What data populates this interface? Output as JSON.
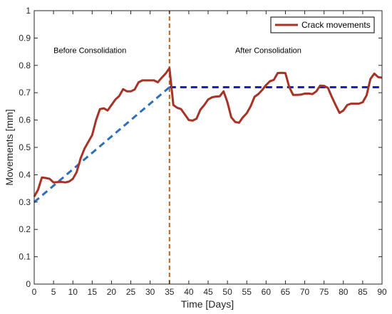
{
  "chart_data": {
    "type": "line",
    "title": "",
    "xlabel": "Time [Days]",
    "ylabel": "Movements [mm]",
    "xlim": [
      0,
      90
    ],
    "ylim": [
      0,
      1
    ],
    "xticks": [
      0,
      5,
      10,
      15,
      20,
      25,
      30,
      35,
      40,
      45,
      50,
      55,
      60,
      65,
      70,
      75,
      80,
      85,
      90
    ],
    "yticks": [
      0,
      0.1,
      0.2,
      0.3,
      0.4,
      0.5,
      0.6,
      0.7,
      0.8,
      0.9,
      1
    ],
    "ytick_labels": [
      "0",
      "0.1",
      "0.2",
      "0.3",
      "0.4",
      "0.5",
      "0.6",
      "0.7",
      "0.8",
      "0.9",
      "1"
    ],
    "grid": false,
    "legend_position": "top-right",
    "series": [
      {
        "name": "Crack movements",
        "color": "#a93226",
        "x": [
          0,
          1,
          2,
          3,
          4,
          5,
          6,
          7,
          8,
          9,
          10,
          11,
          12,
          13,
          14,
          15,
          16,
          17,
          18,
          19,
          20,
          21,
          22,
          23,
          24,
          25,
          26,
          27,
          28,
          29,
          30,
          31,
          32,
          33,
          34,
          35,
          36,
          37,
          38,
          39,
          40,
          41,
          42,
          43,
          44,
          45,
          46,
          47,
          48,
          49,
          50,
          51,
          52,
          53,
          54,
          55,
          56,
          57,
          58,
          59,
          60,
          61,
          62,
          63,
          64,
          65,
          66,
          67,
          68,
          69,
          70,
          71,
          72,
          73,
          74,
          75,
          76,
          77,
          78,
          79,
          80,
          81,
          82,
          83,
          84,
          85,
          86,
          87,
          88,
          89,
          90
        ],
        "y": [
          0.32,
          0.345,
          0.39,
          0.388,
          0.385,
          0.372,
          0.373,
          0.374,
          0.372,
          0.375,
          0.385,
          0.41,
          0.46,
          0.495,
          0.52,
          0.545,
          0.6,
          0.64,
          0.643,
          0.635,
          0.655,
          0.675,
          0.688,
          0.713,
          0.705,
          0.705,
          0.712,
          0.738,
          0.745,
          0.745,
          0.745,
          0.745,
          0.738,
          0.755,
          0.77,
          0.79,
          0.655,
          0.645,
          0.64,
          0.62,
          0.6,
          0.598,
          0.605,
          0.638,
          0.655,
          0.675,
          0.683,
          0.686,
          0.687,
          0.705,
          0.665,
          0.61,
          0.593,
          0.59,
          0.61,
          0.625,
          0.65,
          0.685,
          0.695,
          0.71,
          0.728,
          0.742,
          0.747,
          0.772,
          0.773,
          0.772,
          0.72,
          0.692,
          0.692,
          0.693,
          0.697,
          0.697,
          0.695,
          0.705,
          0.726,
          0.725,
          0.718,
          0.685,
          0.655,
          0.626,
          0.635,
          0.655,
          0.66,
          0.66,
          0.66,
          0.665,
          0.69,
          0.75,
          0.77,
          0.757,
          0.755
        ]
      }
    ],
    "reference_lines": [
      {
        "from": [
          0,
          0.3
        ],
        "to": [
          35,
          0.72
        ],
        "style": "dashed",
        "color": "#2e6fbb"
      },
      {
        "from": [
          35,
          0.72
        ],
        "to": [
          90,
          0.72
        ],
        "style": "dashed",
        "color": "#1b1bd1"
      },
      {
        "from": [
          35,
          0
        ],
        "to": [
          35,
          1
        ],
        "style": "dashed",
        "color": "#b5651d"
      }
    ],
    "annotations": [
      {
        "text": "Before Consolidation",
        "x": 5,
        "y": 0.855
      },
      {
        "text": "After Consolidation",
        "x": 52,
        "y": 0.855
      }
    ]
  }
}
